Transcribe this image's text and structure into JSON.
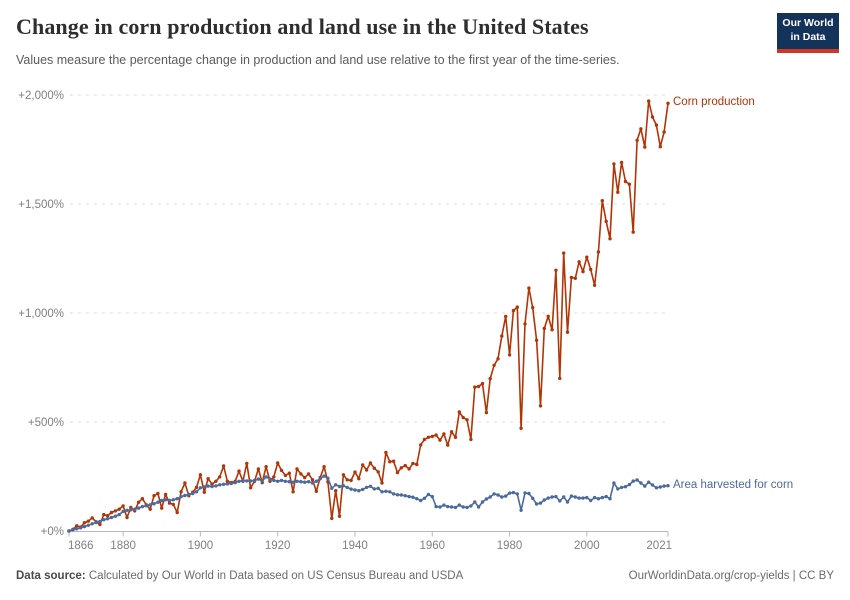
{
  "header": {
    "title": "Change in corn production and land use in the United States",
    "subtitle": "Values measure the percentage change in production and land use relative to the first year of the time-series.",
    "logo": {
      "line1": "Our World",
      "line2": "in Data"
    }
  },
  "footer": {
    "source_label": "Data source:",
    "source_text": " Calculated by Our World in Data based on US Census Bureau and USDA",
    "link_text": "OurWorldinData.org/crop-yields | CC BY"
  },
  "colors": {
    "corn_production": "#B13507",
    "area_harvested": "#4C6A9C",
    "grid": "#dcdcdc",
    "axis": "#b8b8b8",
    "tick_label": "#808080",
    "logo_navy": "#14335A",
    "logo_red": "#D0362A"
  },
  "chart_data": {
    "type": "line",
    "title": "Change in corn production and land use in the United States",
    "xlabel": "",
    "ylabel": "",
    "x_start": 1866,
    "x_end": 2021,
    "ylim": [
      0,
      2000
    ],
    "grid": "horizontal-dashed",
    "legend_position": "end-of-line-labels",
    "markers": true,
    "grid_color": "#dcdcdc",
    "x_ticks": [
      1866,
      1880,
      1900,
      1920,
      1940,
      1960,
      1980,
      2000,
      2021
    ],
    "x_tick_labels": [
      "1866",
      "1880",
      "1900",
      "1920",
      "1940",
      "1960",
      "1980",
      "2000",
      "2021"
    ],
    "y_ticks": [
      0,
      500,
      1000,
      1500,
      2000
    ],
    "y_tick_labels": [
      "+0%",
      "+500%",
      "+1,000%",
      "+1,500%",
      "+2,000%"
    ],
    "unit": "percent change relative to 1866",
    "series": [
      {
        "name": "Corn production",
        "color": "#B13507",
        "values": [
          0,
          8,
          24,
          18,
          38,
          45,
          60,
          42,
          30,
          75,
          70,
          85,
          92,
          100,
          115,
          62,
          108,
          92,
          132,
          148,
          120,
          100,
          162,
          172,
          105,
          168,
          128,
          122,
          85,
          180,
          220,
          162,
          178,
          200,
          258,
          178,
          240,
          215,
          228,
          248,
          298,
          228,
          222,
          228,
          275,
          228,
          310,
          198,
          228,
          285,
          222,
          295,
          228,
          248,
          312,
          278,
          255,
          265,
          180,
          285,
          262,
          245,
          262,
          235,
          182,
          245,
          295,
          225,
          58,
          185,
          68,
          258,
          235,
          232,
          270,
          240,
          303,
          280,
          312,
          288,
          271,
          220,
          360,
          318,
          320,
          268,
          290,
          300,
          285,
          310,
          305,
          395,
          420,
          430,
          434,
          440,
          417,
          445,
          394,
          455,
          430,
          546,
          520,
          510,
          420,
          660,
          663,
          676,
          543,
          699,
          760,
          790,
          894,
          984,
          808,
          1011,
          1027,
          471,
          950,
          1114,
          1025,
          875,
          574,
          929,
          985,
          923,
          1196,
          700,
          1275,
          912,
          1163,
          1159,
          1235,
          1190,
          1256,
          1200,
          1127,
          1280,
          1515,
          1420,
          1341,
          1684,
          1554,
          1691,
          1603,
          1591,
          1371,
          1792,
          1845,
          1761,
          1972,
          1899,
          1862,
          1763,
          1830,
          1962
        ]
      },
      {
        "name": "Area harvested for corn",
        "color": "#4C6A9C",
        "values": [
          0,
          5,
          10,
          14,
          20,
          26,
          33,
          39,
          44,
          52,
          56,
          62,
          68,
          75,
          90,
          95,
          97,
          100,
          105,
          112,
          116,
          120,
          125,
          132,
          140,
          143,
          140,
          143,
          148,
          158,
          163,
          168,
          172,
          180,
          198,
          202,
          206,
          204,
          207,
          212,
          214,
          216,
          218,
          222,
          228,
          232,
          230,
          230,
          232,
          238,
          230,
          248,
          238,
          232,
          228,
          232,
          228,
          226,
          224,
          228,
          226,
          224,
          226,
          220,
          228,
          240,
          252,
          242,
          196,
          212,
          204,
          208,
          200,
          192,
          188,
          185,
          191,
          200,
          205,
          193,
          196,
          180,
          182,
          180,
          170,
          166,
          165,
          162,
          158,
          155,
          148,
          140,
          150,
          168,
          158,
          112,
          110,
          119,
          112,
          110,
          108,
          119,
          110,
          108,
          115,
          133,
          110,
          133,
          147,
          156,
          170,
          165,
          156,
          160,
          174,
          176,
          170,
          95,
          175,
          172,
          150,
          124,
          128,
          142,
          151,
          156,
          158,
          138,
          156,
          133,
          160,
          156,
          151,
          151,
          153,
          140,
          153,
          148,
          153,
          158,
          148,
          220,
          193,
          200,
          203,
          213,
          229,
          234,
          220,
          206,
          224,
          211,
          198,
          202,
          206,
          208
        ]
      }
    ]
  }
}
